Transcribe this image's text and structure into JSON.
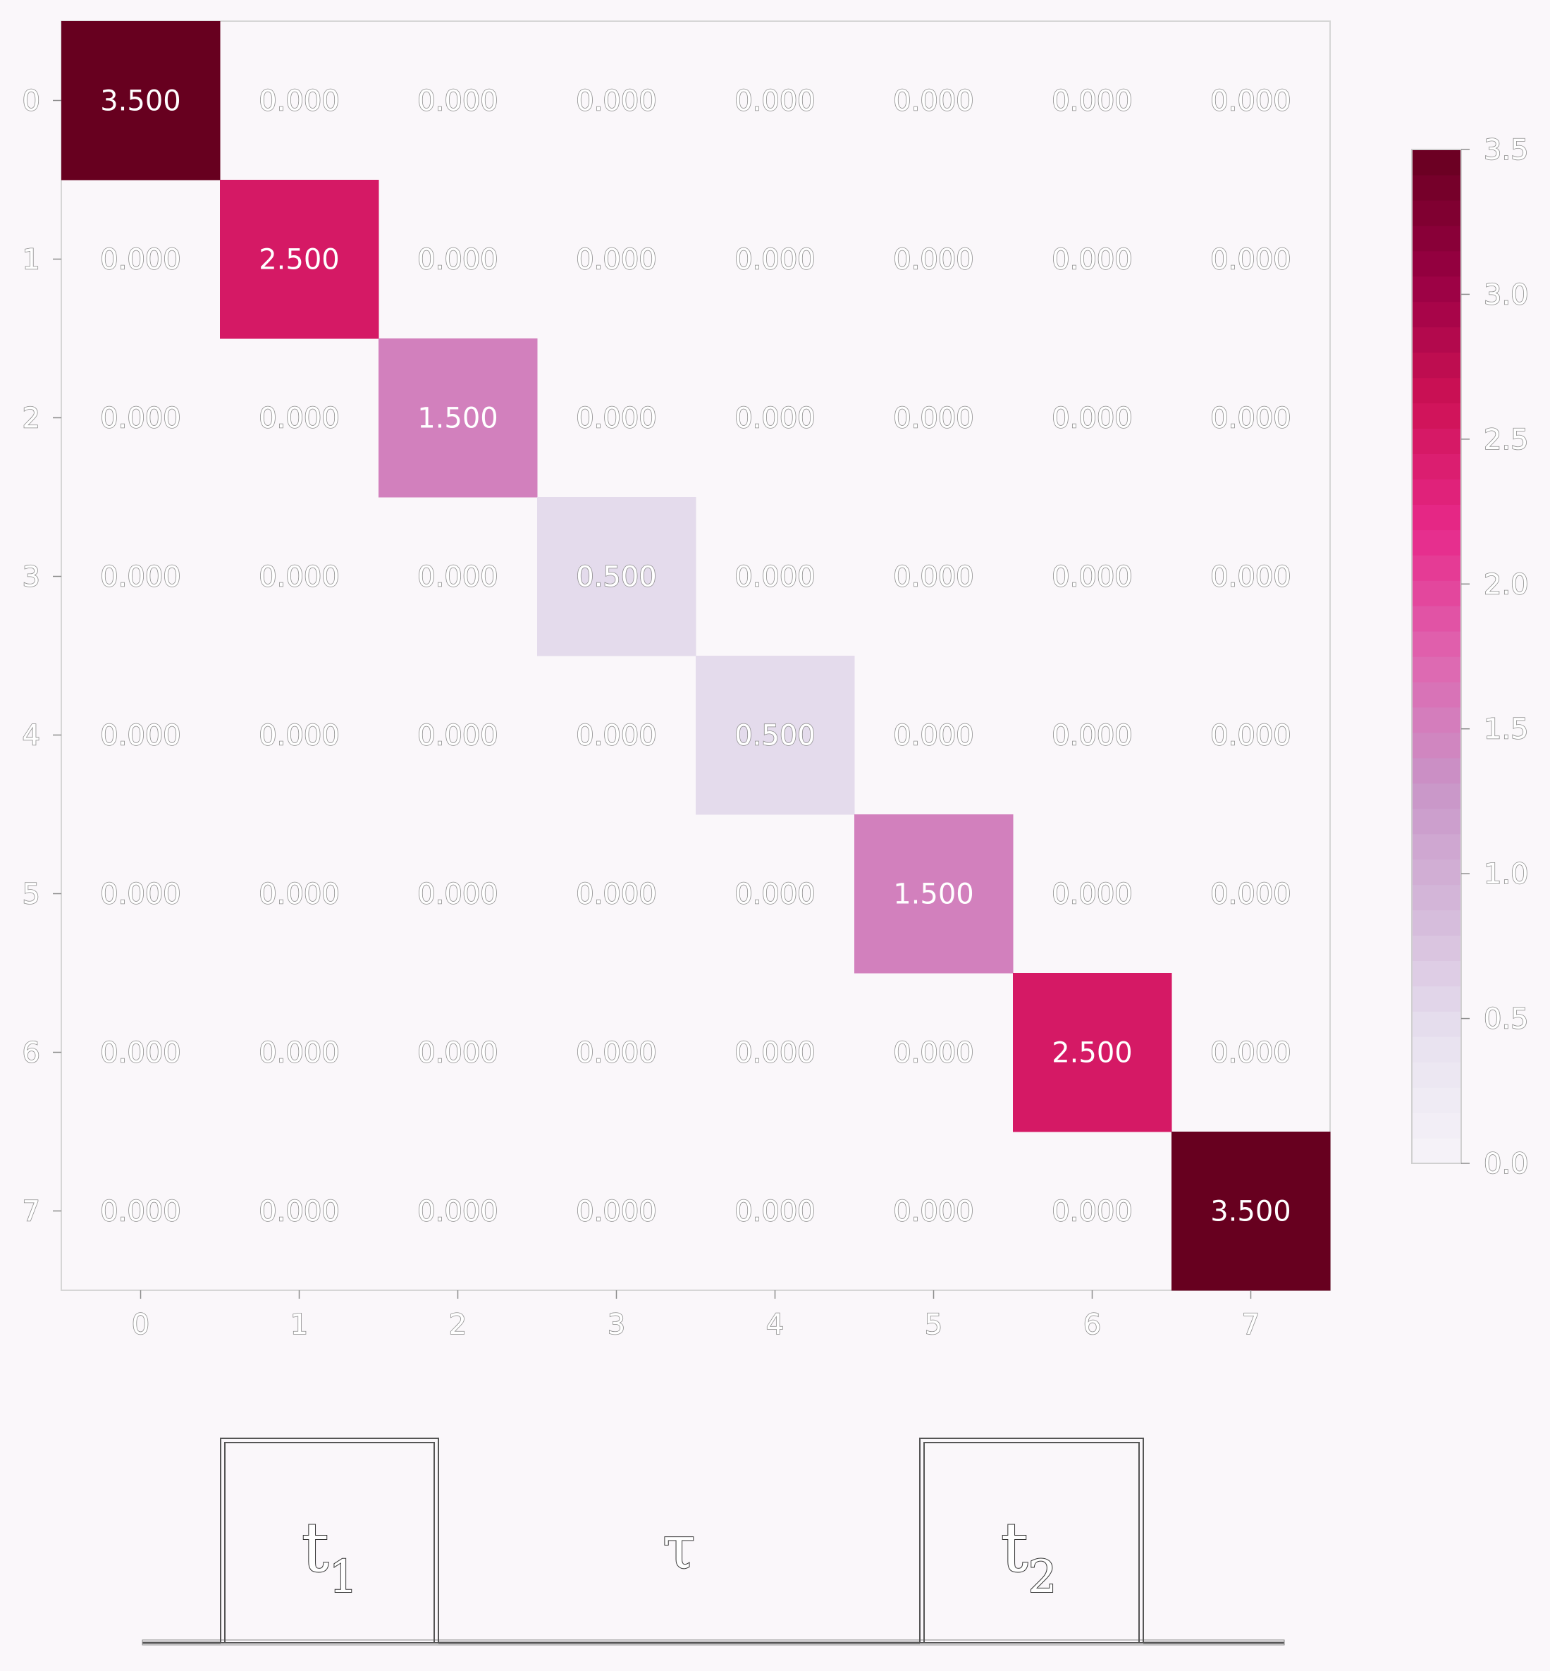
{
  "chart_data": {
    "type": "heatmap",
    "title": "",
    "xlabel": "",
    "ylabel": "",
    "x_ticks": [
      "0",
      "1",
      "2",
      "3",
      "4",
      "5",
      "6",
      "7"
    ],
    "y_ticks": [
      "0",
      "1",
      "2",
      "3",
      "4",
      "5",
      "6",
      "7"
    ],
    "values": [
      [
        3.5,
        0,
        0,
        0,
        0,
        0,
        0,
        0
      ],
      [
        0,
        2.5,
        0,
        0,
        0,
        0,
        0,
        0
      ],
      [
        0,
        0,
        1.5,
        0,
        0,
        0,
        0,
        0
      ],
      [
        0,
        0,
        0,
        0.5,
        0,
        0,
        0,
        0
      ],
      [
        0,
        0,
        0,
        0,
        0.5,
        0,
        0,
        0
      ],
      [
        0,
        0,
        0,
        0,
        0,
        1.5,
        0,
        0
      ],
      [
        0,
        0,
        0,
        0,
        0,
        0,
        2.5,
        0
      ],
      [
        0,
        0,
        0,
        0,
        0,
        0,
        0,
        3.5
      ]
    ],
    "value_format": "0.000",
    "colorbar": {
      "range": [
        0,
        3.5
      ],
      "ticks": [
        "0.0",
        "0.5",
        "1.0",
        "1.5",
        "2.0",
        "2.5",
        "3.0",
        "3.5"
      ],
      "colormap": "PuRd",
      "stops": [
        "#f7f4f9",
        "#e7e1ef",
        "#d4b9da",
        "#c994c7",
        "#df65b0",
        "#e7298a",
        "#ce1256",
        "#980043",
        "#67001f"
      ]
    },
    "grid": false
  },
  "pulse_diagram": {
    "labels": {
      "t1_base": "t",
      "t1_sub": "1",
      "tau": "τ",
      "t2_base": "t",
      "t2_sub": "2"
    }
  }
}
